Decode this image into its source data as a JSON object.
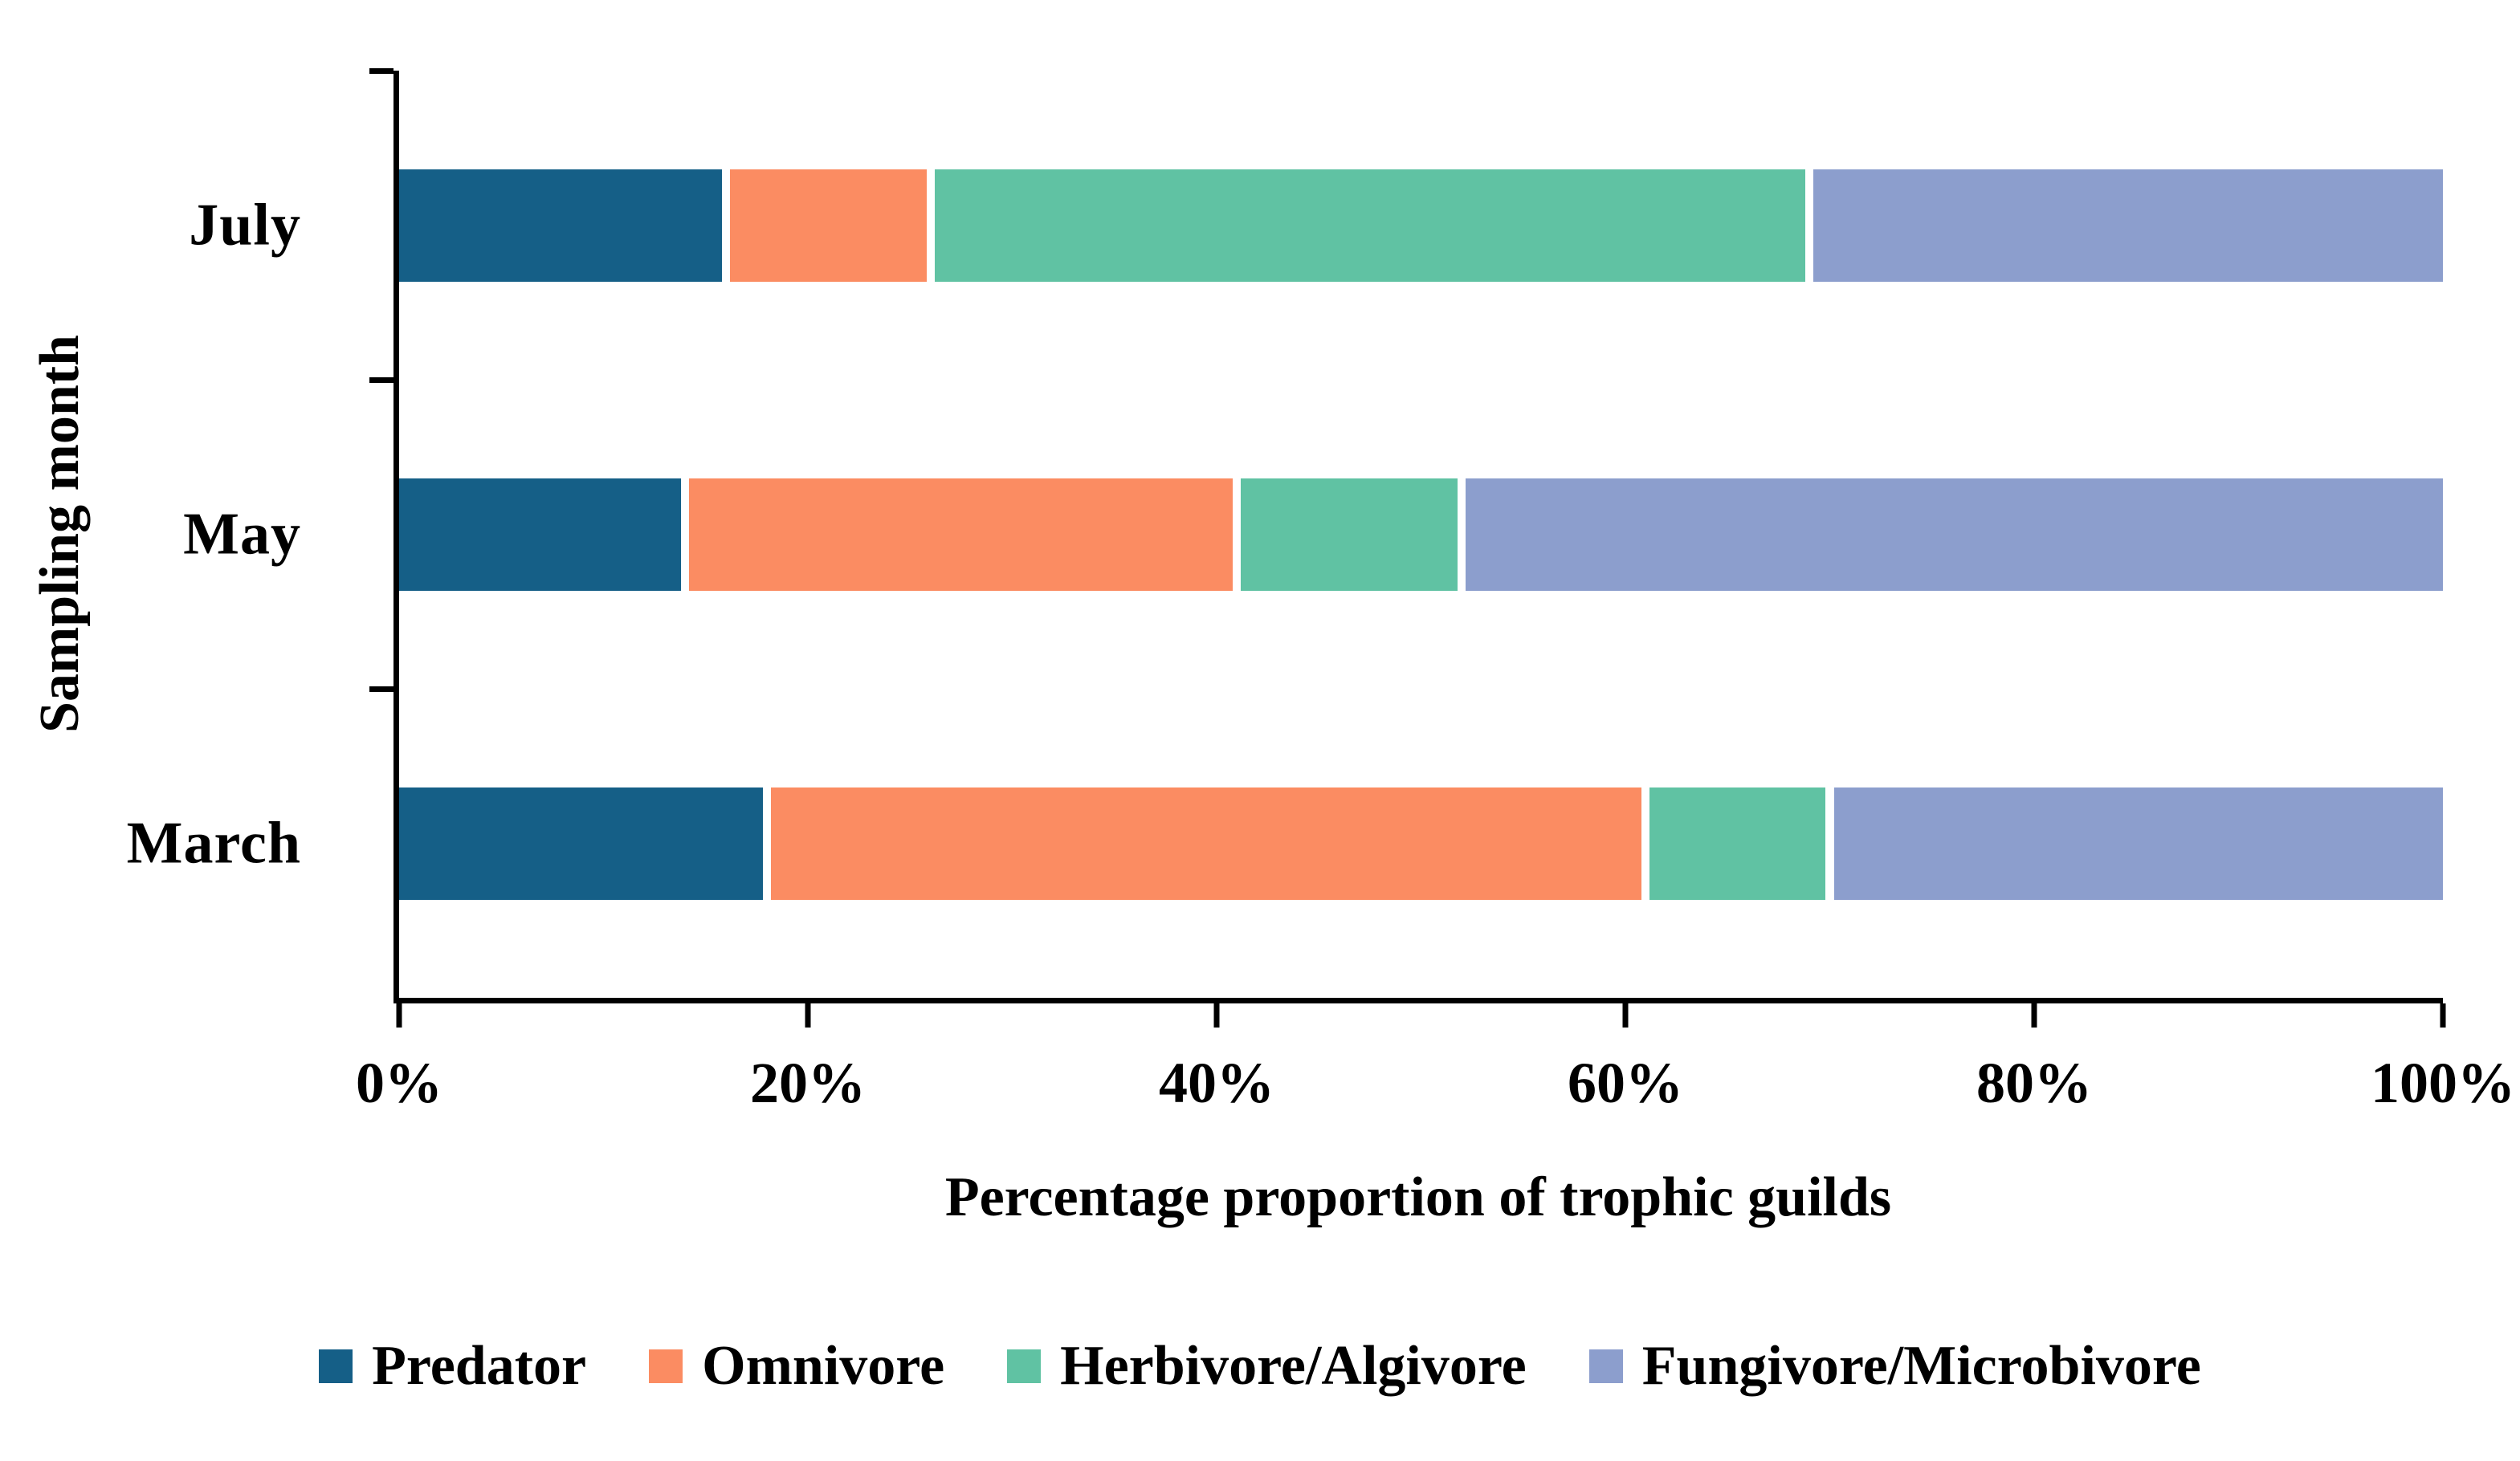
{
  "figure": {
    "background": "#ffffff",
    "axis_color": "#000000",
    "text_color": "#000000"
  },
  "chart_data": {
    "type": "bar",
    "orientation": "horizontal",
    "stacked": true,
    "title": "",
    "xlabel": "Percentage proportion of trophic guilds",
    "ylabel": "Sampling month",
    "categories": [
      "July",
      "May",
      "March"
    ],
    "x_ticks": [
      "0%",
      "20%",
      "40%",
      "60%",
      "80%",
      "100%"
    ],
    "xlim": [
      0,
      100
    ],
    "grid": false,
    "legend_position": "bottom",
    "series": [
      {
        "name": "Predator",
        "color": "#155f87",
        "values": [
          16,
          14,
          18
        ]
      },
      {
        "name": "Omnivore",
        "color": "#fb8c62",
        "values": [
          10,
          27,
          43
        ]
      },
      {
        "name": "Herbivore/Algivore",
        "color": "#60c2a3",
        "values": [
          43,
          11,
          9
        ]
      },
      {
        "name": "Fungivore/Microbivore",
        "color": "#8c9ecd",
        "values": [
          31,
          48,
          30
        ]
      }
    ]
  }
}
